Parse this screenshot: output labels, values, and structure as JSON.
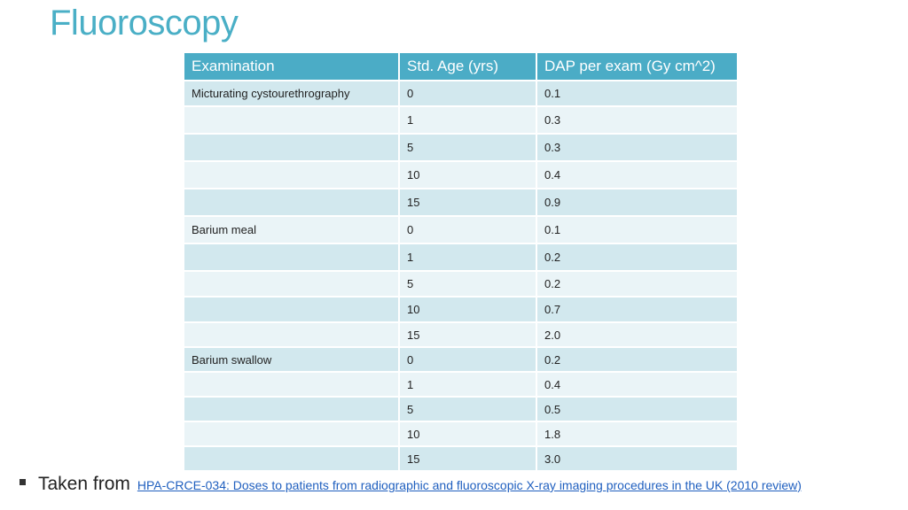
{
  "title": "Fluoroscopy",
  "table": {
    "headers": [
      "Examination",
      "Std. Age (yrs)",
      "DAP per exam (Gy cm^2)"
    ],
    "rows": [
      [
        "Micturating cystourethrography",
        "0",
        "0.1"
      ],
      [
        "",
        "1",
        "0.3"
      ],
      [
        "",
        "5",
        "0.3"
      ],
      [
        "",
        "10",
        "0.4"
      ],
      [
        "",
        "15",
        "0.9"
      ],
      [
        "Barium meal",
        "0",
        "0.1"
      ],
      [
        "",
        "1",
        "0.2"
      ],
      [
        "",
        "5",
        "0.2"
      ],
      [
        "",
        "10",
        "0.7"
      ],
      [
        "",
        "15",
        "2.0"
      ],
      [
        "Barium swallow",
        "0",
        "0.2"
      ],
      [
        "",
        "1",
        "0.4"
      ],
      [
        "",
        "5",
        "0.5"
      ],
      [
        "",
        "10",
        "1.8"
      ],
      [
        "",
        "15",
        "3.0"
      ]
    ]
  },
  "footer": {
    "lead": "Taken from",
    "link_text": "HPA-CRCE-034: Doses to patients from radiographic and fluoroscopic X-ray imaging procedures in the UK (2010 review)"
  },
  "colors": {
    "title": "#4aafc6",
    "header_bg": "#4bacc6",
    "row_dark": "#d2e8ee",
    "row_light": "#eaf4f7",
    "link": "#1f5fbf"
  }
}
